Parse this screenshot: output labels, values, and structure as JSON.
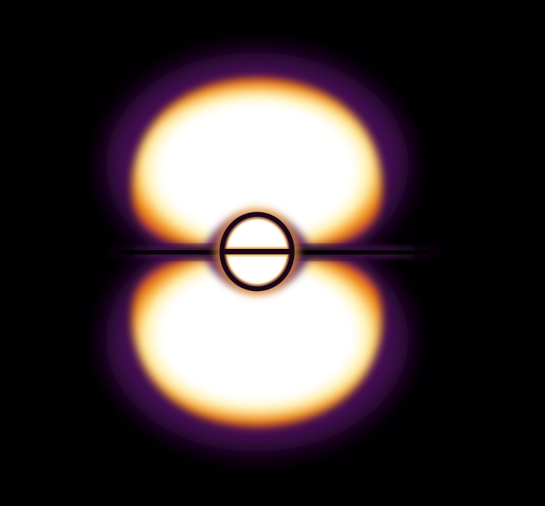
{
  "image": {
    "subject": "orbital-probability-density",
    "colormap": "inferno",
    "colors": {
      "background": "#000000",
      "core": "#ffffff",
      "inner_glow": "#fff3b0",
      "mid_glow": "#f7a11a",
      "outer_glow": "#d9541f",
      "fringe": "#7a1c8a",
      "node_dark": "#120514"
    }
  }
}
